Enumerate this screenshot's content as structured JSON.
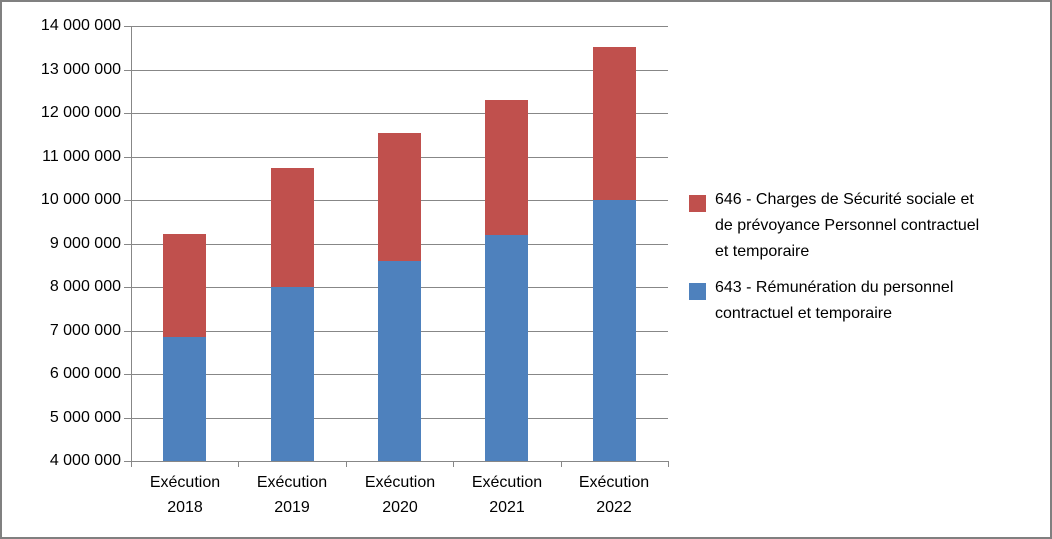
{
  "chart_data": {
    "type": "bar",
    "stacked": true,
    "title": "",
    "xlabel": "",
    "ylabel": "",
    "categories": [
      "Exécution 2018",
      "Exécution 2019",
      "Exécution 2020",
      "Exécution 2021",
      "Exécution 2022"
    ],
    "series": [
      {
        "key": "643",
        "name": "643 - Rémunération du personnel contractuel et temporaire",
        "color": "#4E81BD",
        "values": [
          6850000,
          8000000,
          8600000,
          9200000,
          10000000
        ]
      },
      {
        "key": "646",
        "name": "646 - Charges de Sécurité sociale et de prévoyance Personnel contractuel et temporaire",
        "color": "#C0504D",
        "values": [
          2370000,
          2730000,
          2950000,
          3100000,
          3520000
        ]
      }
    ],
    "stack_totals": [
      9220000,
      10730000,
      11550000,
      12300000,
      13520000
    ],
    "ylim": [
      4000000,
      14000000
    ],
    "ytick_step": 1000000,
    "ytick_labels_top_down": [
      "14 000 000",
      "13 000 000",
      "12 000 000",
      "11 000 000",
      "10 000 000",
      "9 000 000",
      "8 000 000",
      "7 000 000",
      "6 000 000",
      "5 000 000",
      "4 000 000"
    ],
    "grid": true,
    "legend_position": "right"
  },
  "legend": {
    "entries": [
      {
        "series_key": "646",
        "color": "#C0504D",
        "lines": [
          "646 - Charges de Sécurité sociale et",
          "de prévoyance Personnel contractuel",
          "et temporaire"
        ]
      },
      {
        "series_key": "643",
        "color": "#4E81BD",
        "lines": [
          "643 - Rémunération du personnel",
          "contractuel et temporaire"
        ]
      }
    ]
  },
  "colors": {
    "grid": "#878787",
    "axis": "#878787",
    "text": "#000000",
    "border": "#808080",
    "background": "#FFFFFF"
  }
}
